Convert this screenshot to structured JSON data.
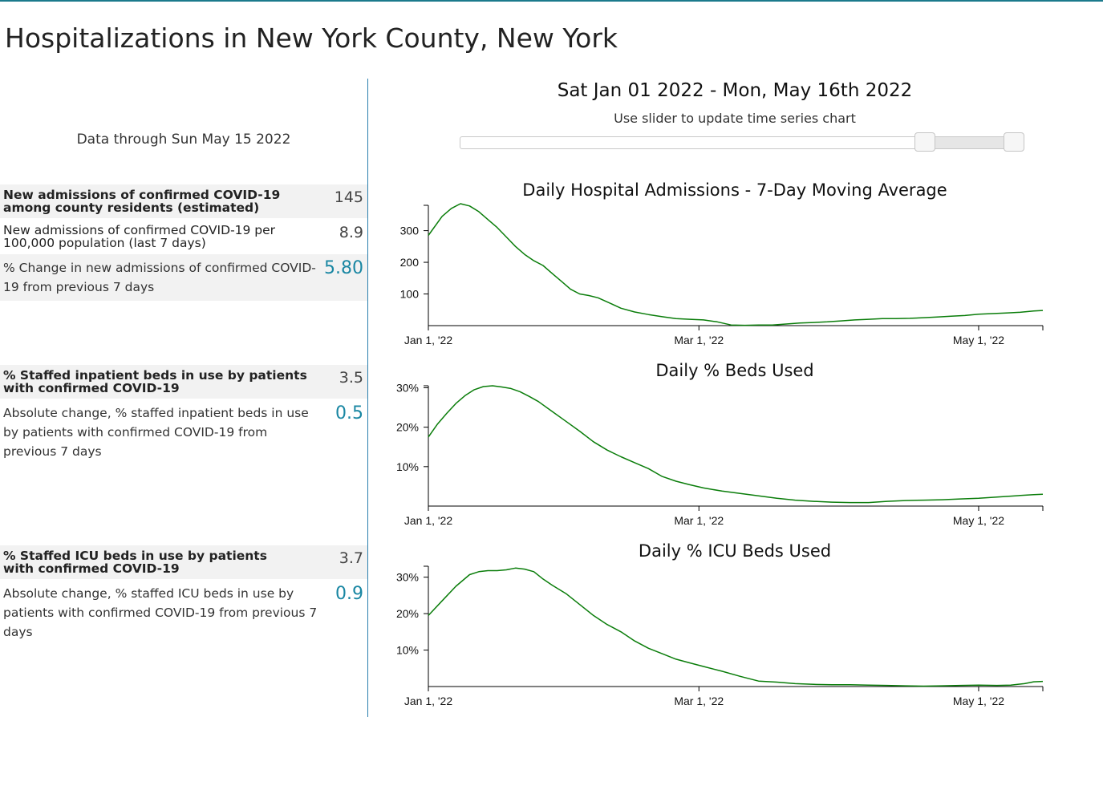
{
  "page": {
    "title": "Hospitalizations in New York County, New York"
  },
  "left": {
    "data_through": "Data through Sun May 15 2022",
    "metrics": [
      {
        "label": "New admissions of confirmed COVID-19 among county residents (estimated)",
        "value": "145"
      },
      {
        "label": "New admissions of confirmed COVID-19 per 100,000 population (last 7 days)",
        "value": "8.9"
      },
      {
        "label": "% Change in new admissions of confirmed COVID-19 from previous 7 days",
        "value": "5.80"
      },
      {
        "label": "% Staffed inpatient beds in use by patients with confirmed COVID-19",
        "value": "3.5"
      },
      {
        "label": "Absolute change, % staffed inpatient beds in use by patients with confirmed COVID-19 from previous 7 days",
        "value": "0.5"
      },
      {
        "label": "% Staffed ICU beds in use by patients with confirmed COVID-19",
        "value": "3.7"
      },
      {
        "label": "Absolute change, % staffed ICU beds in use by patients with confirmed COVID-19 from previous 7 days",
        "value": "0.9"
      }
    ]
  },
  "right": {
    "date_range": "Sat Jan 01 2022 - Mon, May 16th 2022",
    "slider_hint": "Use slider to update time series chart",
    "slider": {
      "start_fraction": 0.83,
      "end_fraction": 0.99
    }
  },
  "colors": {
    "line": "#0a7d0a",
    "accent": "#1a87a3",
    "border": "#2a7fad"
  },
  "chart_data": [
    {
      "type": "line",
      "title": "Daily Hospital Admissions - 7-Day Moving Average",
      "x_labels": [
        "Jan 1, '22",
        "Mar 1, '22",
        "May 1, '22"
      ],
      "x_label_days": [
        0,
        59,
        120
      ],
      "x_domain_days": [
        0,
        134
      ],
      "y_ticks": [
        100,
        200,
        300
      ],
      "y_tick_labels": [
        "100",
        "200",
        "300"
      ],
      "ylim": [
        0,
        380
      ],
      "series": [
        {
          "name": "7-day moving average admissions",
          "x": [
            0,
            3,
            5,
            7,
            9,
            11,
            13,
            15,
            17,
            19,
            21,
            23,
            25,
            27,
            29,
            31,
            33,
            35,
            37,
            39,
            42,
            45,
            48,
            51,
            54,
            57,
            60,
            63,
            66,
            69,
            72,
            75,
            78,
            81,
            84,
            87,
            90,
            93,
            96,
            99,
            102,
            105,
            108,
            111,
            114,
            117,
            120,
            123,
            126,
            129,
            132,
            134
          ],
          "y": [
            285,
            345,
            370,
            385,
            378,
            360,
            335,
            310,
            280,
            250,
            225,
            205,
            190,
            165,
            140,
            115,
            100,
            95,
            88,
            75,
            55,
            43,
            35,
            28,
            22,
            20,
            18,
            12,
            2,
            1,
            2,
            2,
            5,
            8,
            10,
            12,
            15,
            18,
            20,
            22,
            22,
            23,
            25,
            27,
            30,
            32,
            36,
            38,
            40,
            42,
            46,
            48
          ]
        }
      ]
    },
    {
      "type": "line",
      "title": "Daily % Beds Used",
      "x_labels": [
        "Jan 1, '22",
        "Mar 1, '22",
        "May 1, '22"
      ],
      "x_label_days": [
        0,
        59,
        120
      ],
      "x_domain_days": [
        0,
        134
      ],
      "y_ticks": [
        10,
        20,
        30
      ],
      "y_tick_labels": [
        "10%",
        "20%",
        "30%"
      ],
      "ylim": [
        0,
        30.5
      ],
      "series": [
        {
          "name": "% beds used",
          "x": [
            0,
            2,
            4,
            6,
            8,
            10,
            12,
            14,
            16,
            18,
            20,
            22,
            24,
            27,
            30,
            33,
            36,
            39,
            42,
            45,
            48,
            51,
            54,
            57,
            60,
            64,
            68,
            72,
            76,
            80,
            84,
            88,
            92,
            96,
            100,
            104,
            108,
            112,
            116,
            120,
            124,
            128,
            132,
            134
          ],
          "y": [
            17.5,
            20.8,
            23.5,
            26,
            28,
            29.5,
            30.3,
            30.5,
            30.2,
            29.8,
            29,
            27.8,
            26.5,
            24,
            21.5,
            19,
            16.3,
            14.2,
            12.5,
            11,
            9.5,
            7.5,
            6.3,
            5.4,
            4.6,
            3.8,
            3.2,
            2.6,
            2.0,
            1.5,
            1.2,
            1.0,
            0.9,
            0.9,
            1.2,
            1.4,
            1.5,
            1.6,
            1.8,
            2.0,
            2.3,
            2.6,
            2.9,
            3.0
          ]
        }
      ]
    },
    {
      "type": "line",
      "title": "Daily % ICU Beds Used",
      "x_labels": [
        "Jan 1, '22",
        "Mar 1, '22",
        "May 1, '22"
      ],
      "x_label_days": [
        0,
        59,
        120
      ],
      "x_domain_days": [
        0,
        134
      ],
      "y_ticks": [
        10,
        20,
        30
      ],
      "y_tick_labels": [
        "10%",
        "20%",
        "30%"
      ],
      "ylim": [
        0,
        33
      ],
      "series": [
        {
          "name": "% ICU beds used",
          "x": [
            0,
            3,
            6,
            9,
            11,
            13,
            15,
            17,
            19,
            21,
            23,
            25,
            27,
            30,
            33,
            36,
            39,
            42,
            45,
            48,
            51,
            54,
            57,
            60,
            64,
            68,
            72,
            76,
            80,
            84,
            88,
            92,
            96,
            100,
            104,
            108,
            112,
            116,
            120,
            124,
            127,
            130,
            132,
            134
          ],
          "y": [
            19.5,
            23.5,
            27.5,
            30.7,
            31.5,
            31.8,
            31.8,
            32,
            32.5,
            32.2,
            31.5,
            29.5,
            27.8,
            25.5,
            22.5,
            19.5,
            17,
            15,
            12.5,
            10.5,
            9,
            7.5,
            6.5,
            5.5,
            4.2,
            2.8,
            1.5,
            1.2,
            0.8,
            0.6,
            0.5,
            0.5,
            0.4,
            0.3,
            0.2,
            0.1,
            0.2,
            0.3,
            0.4,
            0.3,
            0.4,
            0.8,
            1.3,
            1.4
          ]
        }
      ]
    }
  ]
}
